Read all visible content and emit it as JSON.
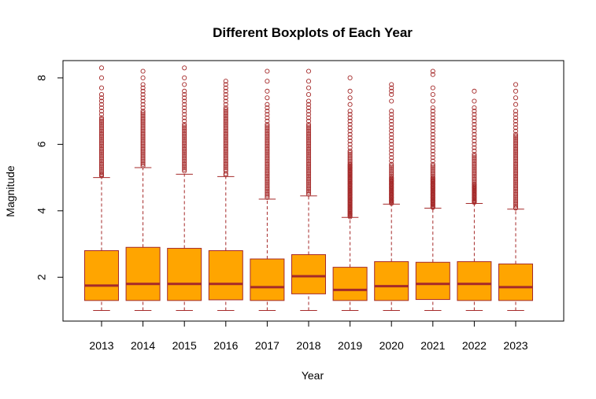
{
  "chart_data": {
    "type": "boxplot",
    "title": "Different Boxplots of Each Year",
    "xlabel": "Year",
    "ylabel": "Magnitude",
    "categories": [
      "2013",
      "2014",
      "2015",
      "2016",
      "2017",
      "2018",
      "2019",
      "2020",
      "2021",
      "2022",
      "2023"
    ],
    "ylim": [
      0.68,
      8.52
    ],
    "yticks": [
      2,
      4,
      6,
      8
    ],
    "grid": false,
    "legend": "none",
    "colors": {
      "box_fill": "#FFA500",
      "stroke": "#A52A2A",
      "frame": "#000000"
    },
    "series": [
      {
        "category": "2013",
        "min": 1.0,
        "q1": 1.3,
        "median": 1.75,
        "q3": 2.8,
        "whisker_high": 5.0,
        "outliers": [
          5.05,
          5.08,
          5.1,
          5.15,
          5.2,
          5.25,
          5.3,
          5.35,
          5.4,
          5.45,
          5.5,
          5.55,
          5.6,
          5.65,
          5.7,
          5.75,
          5.8,
          5.85,
          5.9,
          5.95,
          6.0,
          6.05,
          6.1,
          6.15,
          6.2,
          6.25,
          6.3,
          6.35,
          6.4,
          6.45,
          6.5,
          6.55,
          6.6,
          6.65,
          6.7,
          6.75,
          6.8,
          6.9,
          7.0,
          7.1,
          7.2,
          7.3,
          7.4,
          7.5,
          7.7,
          8.0,
          8.3
        ]
      },
      {
        "category": "2014",
        "min": 1.0,
        "q1": 1.3,
        "median": 1.8,
        "q3": 2.9,
        "whisker_high": 5.3,
        "outliers": [
          5.35,
          5.4,
          5.45,
          5.5,
          5.55,
          5.6,
          5.65,
          5.7,
          5.75,
          5.8,
          5.85,
          5.9,
          5.95,
          6.0,
          6.05,
          6.1,
          6.15,
          6.2,
          6.25,
          6.3,
          6.35,
          6.4,
          6.45,
          6.5,
          6.55,
          6.6,
          6.65,
          6.7,
          6.75,
          6.8,
          6.85,
          6.9,
          6.95,
          7.0,
          7.1,
          7.2,
          7.3,
          7.4,
          7.5,
          7.6,
          7.7,
          7.8,
          8.0,
          8.2
        ]
      },
      {
        "category": "2015",
        "min": 1.0,
        "q1": 1.3,
        "median": 1.8,
        "q3": 2.87,
        "whisker_high": 5.1,
        "outliers": [
          5.2,
          5.25,
          5.3,
          5.35,
          5.4,
          5.45,
          5.5,
          5.55,
          5.6,
          5.65,
          5.7,
          5.75,
          5.8,
          5.85,
          5.9,
          5.95,
          6.0,
          6.05,
          6.1,
          6.15,
          6.2,
          6.25,
          6.3,
          6.35,
          6.4,
          6.45,
          6.5,
          6.55,
          6.6,
          6.7,
          6.8,
          6.9,
          7.0,
          7.1,
          7.2,
          7.3,
          7.4,
          7.5,
          7.6,
          7.8,
          8.0,
          8.3
        ]
      },
      {
        "category": "2016",
        "min": 1.0,
        "q1": 1.32,
        "median": 1.8,
        "q3": 2.8,
        "whisker_high": 5.03,
        "outliers": [
          5.08,
          5.12,
          5.2,
          5.25,
          5.3,
          5.35,
          5.4,
          5.45,
          5.5,
          5.55,
          5.6,
          5.65,
          5.7,
          5.75,
          5.8,
          5.85,
          5.9,
          5.95,
          6.0,
          6.05,
          6.1,
          6.15,
          6.2,
          6.25,
          6.3,
          6.35,
          6.4,
          6.45,
          6.5,
          6.55,
          6.6,
          6.65,
          6.7,
          6.75,
          6.8,
          6.85,
          6.9,
          6.95,
          7.0,
          7.05,
          7.1,
          7.2,
          7.3,
          7.4,
          7.5,
          7.6,
          7.7,
          7.8,
          7.9
        ]
      },
      {
        "category": "2017",
        "min": 1.0,
        "q1": 1.3,
        "median": 1.7,
        "q3": 2.55,
        "whisker_high": 4.35,
        "outliers": [
          4.4,
          4.45,
          4.5,
          4.55,
          4.6,
          4.65,
          4.7,
          4.75,
          4.8,
          4.85,
          4.9,
          4.95,
          5.0,
          5.05,
          5.1,
          5.15,
          5.2,
          5.25,
          5.3,
          5.35,
          5.4,
          5.45,
          5.5,
          5.55,
          5.6,
          5.65,
          5.7,
          5.75,
          5.8,
          5.85,
          5.9,
          5.95,
          6.0,
          6.05,
          6.1,
          6.15,
          6.2,
          6.25,
          6.3,
          6.35,
          6.4,
          6.45,
          6.5,
          6.55,
          6.6,
          6.7,
          6.8,
          6.9,
          7.0,
          7.1,
          7.2,
          7.4,
          7.6,
          7.9,
          8.2
        ]
      },
      {
        "category": "2018",
        "min": 1.0,
        "q1": 1.5,
        "median": 2.03,
        "q3": 2.68,
        "whisker_high": 4.45,
        "outliers": [
          4.5,
          4.55,
          4.6,
          4.65,
          4.7,
          4.75,
          4.8,
          4.85,
          4.9,
          4.95,
          5.0,
          5.05,
          5.1,
          5.15,
          5.2,
          5.25,
          5.3,
          5.35,
          5.4,
          5.45,
          5.5,
          5.55,
          5.6,
          5.65,
          5.7,
          5.75,
          5.8,
          5.85,
          5.9,
          5.95,
          6.0,
          6.05,
          6.1,
          6.15,
          6.2,
          6.25,
          6.3,
          6.35,
          6.4,
          6.45,
          6.5,
          6.55,
          6.6,
          6.7,
          6.8,
          6.9,
          7.0,
          7.1,
          7.2,
          7.3,
          7.5,
          7.7,
          7.9,
          8.2
        ]
      },
      {
        "category": "2019",
        "min": 1.0,
        "q1": 1.3,
        "median": 1.62,
        "q3": 2.3,
        "whisker_high": 3.8,
        "outliers": [
          3.82,
          3.85,
          3.88,
          3.9,
          3.92,
          3.95,
          3.98,
          4.0,
          4.02,
          4.05,
          4.08,
          4.1,
          4.12,
          4.15,
          4.18,
          4.2,
          4.22,
          4.25,
          4.28,
          4.3,
          4.32,
          4.35,
          4.38,
          4.4,
          4.42,
          4.45,
          4.48,
          4.5,
          4.52,
          4.55,
          4.58,
          4.6,
          4.62,
          4.65,
          4.68,
          4.7,
          4.72,
          4.75,
          4.78,
          4.8,
          4.82,
          4.85,
          4.88,
          4.9,
          4.92,
          4.95,
          4.98,
          5.0,
          5.02,
          5.05,
          5.08,
          5.1,
          5.12,
          5.15,
          5.18,
          5.2,
          5.22,
          5.25,
          5.28,
          5.3,
          5.32,
          5.35,
          5.38,
          5.4,
          5.45,
          5.5,
          5.55,
          5.6,
          5.65,
          5.7,
          5.75,
          5.8,
          5.9,
          6.0,
          6.1,
          6.2,
          6.3,
          6.4,
          6.5,
          6.6,
          6.7,
          6.8,
          6.9,
          7.0,
          7.2,
          7.4,
          7.6,
          8.0
        ]
      },
      {
        "category": "2020",
        "min": 1.0,
        "q1": 1.3,
        "median": 1.73,
        "q3": 2.47,
        "whisker_high": 4.2,
        "outliers": [
          4.22,
          4.25,
          4.28,
          4.3,
          4.32,
          4.35,
          4.38,
          4.4,
          4.42,
          4.45,
          4.48,
          4.5,
          4.52,
          4.55,
          4.58,
          4.6,
          4.62,
          4.65,
          4.68,
          4.7,
          4.72,
          4.75,
          4.78,
          4.8,
          4.82,
          4.85,
          4.88,
          4.9,
          4.92,
          4.95,
          4.98,
          5.0,
          5.05,
          5.1,
          5.15,
          5.2,
          5.25,
          5.3,
          5.35,
          5.4,
          5.5,
          5.6,
          5.7,
          5.8,
          5.9,
          6.0,
          6.1,
          6.2,
          6.3,
          6.4,
          6.5,
          6.6,
          6.7,
          6.8,
          6.9,
          7.0,
          7.3,
          7.5,
          7.6,
          7.7,
          7.8
        ]
      },
      {
        "category": "2021",
        "min": 1.0,
        "q1": 1.33,
        "median": 1.8,
        "q3": 2.45,
        "whisker_high": 4.08,
        "outliers": [
          4.1,
          4.12,
          4.15,
          4.18,
          4.2,
          4.22,
          4.25,
          4.28,
          4.3,
          4.32,
          4.35,
          4.38,
          4.4,
          4.42,
          4.45,
          4.48,
          4.5,
          4.52,
          4.55,
          4.58,
          4.6,
          4.62,
          4.65,
          4.68,
          4.7,
          4.72,
          4.75,
          4.78,
          4.8,
          4.82,
          4.85,
          4.88,
          4.9,
          4.92,
          4.95,
          4.98,
          5.0,
          5.05,
          5.1,
          5.15,
          5.2,
          5.25,
          5.3,
          5.35,
          5.4,
          5.5,
          5.6,
          5.7,
          5.8,
          5.9,
          6.0,
          6.1,
          6.2,
          6.3,
          6.4,
          6.5,
          6.6,
          6.7,
          6.8,
          6.9,
          7.0,
          7.1,
          7.3,
          7.5,
          7.7,
          8.1,
          8.2
        ]
      },
      {
        "category": "2022",
        "min": 1.0,
        "q1": 1.3,
        "median": 1.8,
        "q3": 2.47,
        "whisker_high": 4.22,
        "outliers": [
          4.25,
          4.28,
          4.3,
          4.32,
          4.35,
          4.38,
          4.4,
          4.42,
          4.45,
          4.48,
          4.5,
          4.52,
          4.55,
          4.58,
          4.6,
          4.62,
          4.65,
          4.68,
          4.7,
          4.72,
          4.75,
          4.78,
          4.8,
          4.85,
          4.9,
          4.95,
          5.0,
          5.05,
          5.1,
          5.15,
          5.2,
          5.25,
          5.3,
          5.35,
          5.4,
          5.45,
          5.5,
          5.55,
          5.6,
          5.65,
          5.7,
          5.8,
          5.9,
          6.0,
          6.1,
          6.2,
          6.3,
          6.4,
          6.5,
          6.6,
          6.7,
          6.8,
          6.9,
          7.0,
          7.1,
          7.3,
          7.6
        ]
      },
      {
        "category": "2023",
        "min": 1.0,
        "q1": 1.3,
        "median": 1.7,
        "q3": 2.4,
        "whisker_high": 4.05,
        "outliers": [
          4.08,
          4.1,
          4.15,
          4.2,
          4.25,
          4.3,
          4.35,
          4.4,
          4.45,
          4.5,
          4.55,
          4.6,
          4.65,
          4.7,
          4.75,
          4.8,
          4.85,
          4.9,
          4.95,
          5.0,
          5.05,
          5.1,
          5.15,
          5.2,
          5.25,
          5.3,
          5.35,
          5.4,
          5.45,
          5.5,
          5.55,
          5.6,
          5.65,
          5.7,
          5.75,
          5.8,
          5.85,
          5.9,
          5.95,
          6.0,
          6.05,
          6.1,
          6.15,
          6.2,
          6.25,
          6.3,
          6.4,
          6.5,
          6.6,
          6.7,
          6.8,
          6.9,
          7.0,
          7.2,
          7.4,
          7.6,
          7.8
        ]
      }
    ]
  }
}
